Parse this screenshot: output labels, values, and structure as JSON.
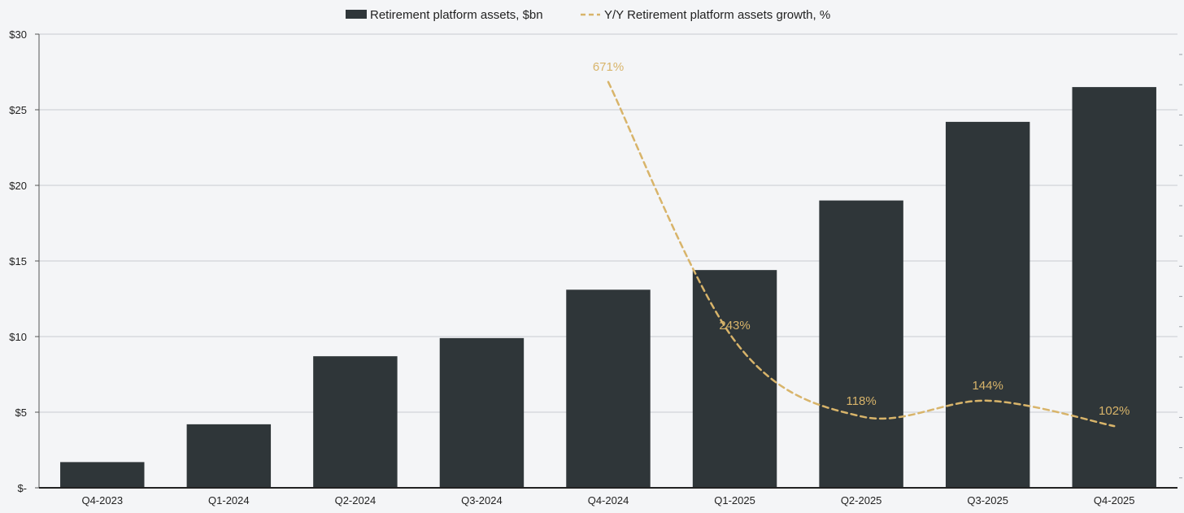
{
  "chart_data": {
    "type": "bar",
    "title": "",
    "xlabel": "",
    "ylabel": "",
    "categories": [
      "Q4-2023",
      "Q1-2024",
      "Q2-2024",
      "Q3-2024",
      "Q4-2024",
      "Q1-2025",
      "Q2-2025",
      "Q3-2025",
      "Q4-2025"
    ],
    "series": [
      {
        "name": "Retirement platform assets, $bn",
        "type": "bar",
        "color": "#2f3639",
        "values": [
          1.7,
          4.2,
          8.7,
          9.9,
          13.1,
          14.4,
          19.0,
          24.2,
          26.5
        ]
      },
      {
        "name": "Y/Y Retirement platform assets growth, %",
        "type": "line",
        "style": "dashed",
        "color": "#d8b46a",
        "values": [
          null,
          null,
          null,
          null,
          671,
          243,
          118,
          144,
          102
        ],
        "labels": [
          null,
          null,
          null,
          null,
          "671%",
          "243%",
          "118%",
          "144%",
          "102%"
        ]
      }
    ],
    "y_axis": {
      "ylim": [
        0,
        30
      ],
      "ticks": [
        0,
        5,
        10,
        15,
        20,
        25,
        30
      ],
      "tick_labels": [
        "$-",
        "$5",
        "$10",
        "$15",
        "$20",
        "$25",
        "$30"
      ]
    },
    "secondary_axis": {
      "ylim": [
        0,
        750
      ]
    },
    "grid": true,
    "legend": "top-center"
  }
}
